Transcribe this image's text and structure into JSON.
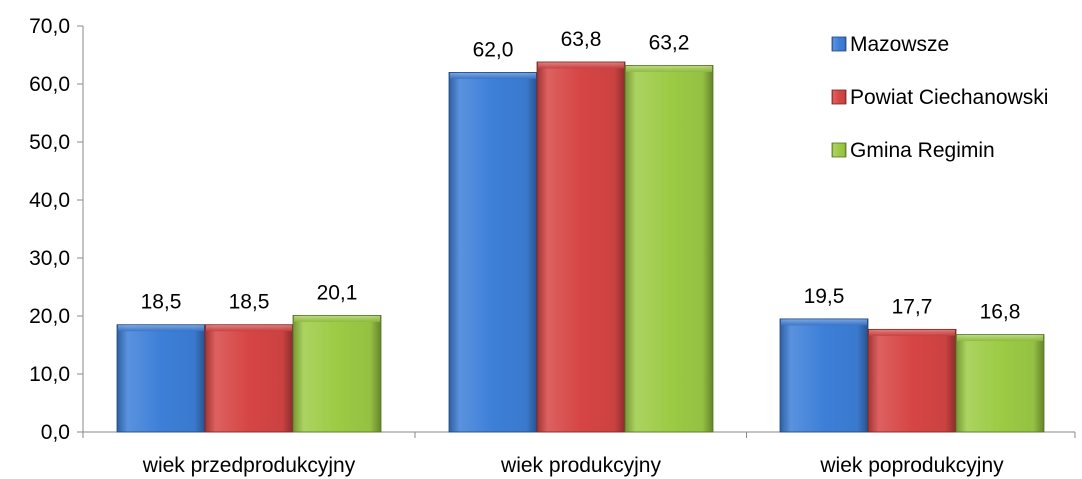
{
  "chart_data": {
    "type": "bar",
    "title": "",
    "xlabel": "",
    "ylabel": "",
    "categories": [
      "wiek przedprodukcyjny",
      "wiek produkcyjny",
      "wiek poprodukcyjny"
    ],
    "series": [
      {
        "name": "Mazowsze",
        "values": [
          18.5,
          62.0,
          19.5
        ],
        "labels": [
          "18,5",
          "62,0",
          "19,5"
        ],
        "color": "#3d7fd8"
      },
      {
        "name": "Powiat Ciechanowski",
        "values": [
          18.5,
          63.8,
          17.7
        ],
        "labels": [
          "18,5",
          "63,8",
          "17,7"
        ],
        "color": "#d64544"
      },
      {
        "name": "Gmina Regimin",
        "values": [
          20.1,
          63.2,
          16.8
        ],
        "labels": [
          "20,1",
          "63,2",
          "16,8"
        ],
        "color": "#9ccb45"
      }
    ],
    "ylim": [
      0,
      70
    ],
    "yticks": [
      "0,0",
      "10,0",
      "20,0",
      "30,0",
      "40,0",
      "50,0",
      "60,0",
      "70,0"
    ],
    "ytick_values": [
      0,
      10,
      20,
      30,
      40,
      50,
      60,
      70
    ],
    "grid": false,
    "legend_position": "top-right",
    "style": "3d-beveled-bars"
  }
}
